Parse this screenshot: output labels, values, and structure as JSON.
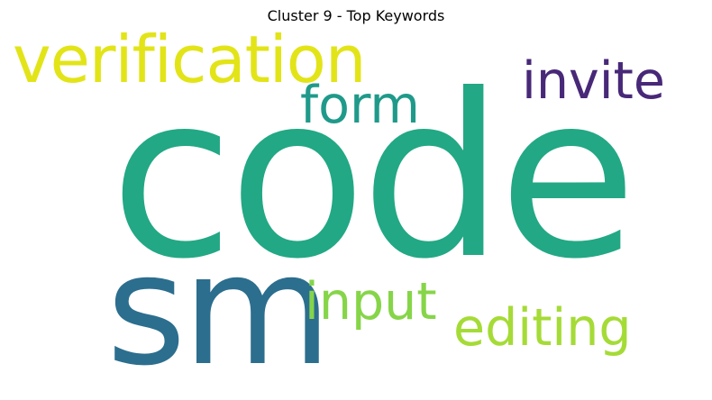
{
  "title": "Cluster 9 - Top Keywords",
  "words": [
    {
      "text": "code",
      "color": "#22a884",
      "weight": 1.0
    },
    {
      "text": "sm",
      "color": "#2c6e8e",
      "weight": 0.68
    },
    {
      "text": "verification",
      "color": "#e2e418",
      "weight": 0.29
    },
    {
      "text": "invite",
      "color": "#482878",
      "weight": 0.23
    },
    {
      "text": "form",
      "color": "#1f9a8a",
      "weight": 0.23
    },
    {
      "text": "input",
      "color": "#86d549",
      "weight": 0.23
    },
    {
      "text": "editing",
      "color": "#a5db36",
      "weight": 0.23
    }
  ]
}
